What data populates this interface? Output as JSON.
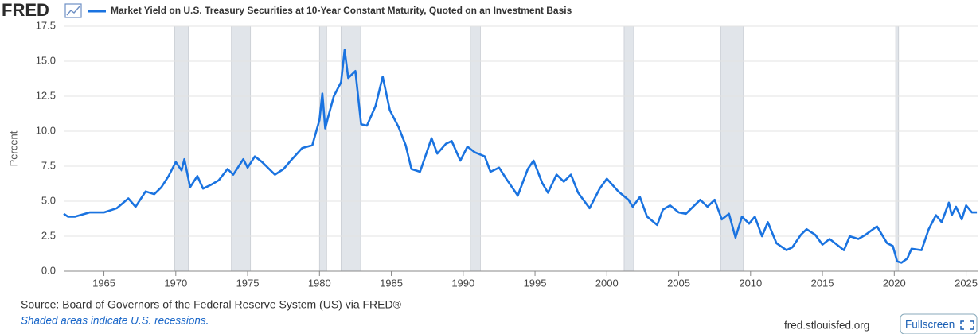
{
  "logo": "FRED",
  "source": "Source: Board of Governors of the Federal Reserve System (US) via FRED®",
  "note": "Shaded areas indicate U.S. recessions.",
  "site": "fred.stlouisfed.org",
  "button": "Fullscreen",
  "chart_data": {
    "type": "line",
    "y_label": "Percent",
    "grid": true,
    "xlim": [
      1962.2,
      2025.8
    ],
    "xticks": [
      1965,
      1970,
      1975,
      1980,
      1985,
      1990,
      1995,
      2000,
      2005,
      2010,
      2015,
      2020,
      2025
    ],
    "ylim": [
      0,
      17.5
    ],
    "yticks": [
      {
        "value": 0,
        "label": "0.0"
      },
      2.5,
      {
        "value": 5,
        "label": "5.0"
      },
      7.5,
      {
        "value": 10,
        "label": "10.0"
      },
      12.5,
      {
        "value": 15,
        "label": "15.0"
      },
      17.5
    ],
    "recessions": [
      [
        1969.92,
        1970.87
      ],
      [
        1973.87,
        1975.2
      ],
      [
        1980.0,
        1980.5
      ],
      [
        1981.5,
        1982.87
      ],
      [
        1990.5,
        1991.2
      ],
      [
        2001.2,
        2001.87
      ],
      [
        2007.92,
        2009.5
      ],
      [
        2020.1,
        2020.3
      ]
    ],
    "x": [
      1962.2,
      1962.5,
      1963.0,
      1964.0,
      1965.0,
      1965.9,
      1966.7,
      1967.2,
      1967.9,
      1968.5,
      1969.0,
      1969.5,
      1970.0,
      1970.4,
      1970.6,
      1971.0,
      1971.5,
      1971.9,
      1972.5,
      1973.0,
      1973.6,
      1974.0,
      1974.7,
      1975.0,
      1975.5,
      1976.0,
      1976.9,
      1977.5,
      1978.0,
      1978.8,
      1979.5,
      1980.0,
      1980.2,
      1980.4,
      1980.6,
      1981.0,
      1981.5,
      1981.75,
      1982.0,
      1982.5,
      1982.9,
      1983.3,
      1983.9,
      1984.4,
      1984.9,
      1985.5,
      1986.0,
      1986.4,
      1987.0,
      1987.8,
      1988.2,
      1988.8,
      1989.2,
      1989.8,
      1990.3,
      1990.8,
      1991.5,
      1991.9,
      1992.5,
      1993.0,
      1993.8,
      1994.5,
      1994.9,
      1995.5,
      1995.9,
      1996.5,
      1997.0,
      1997.5,
      1998.0,
      1998.8,
      1999.5,
      2000.0,
      2000.8,
      2001.5,
      2001.8,
      2002.3,
      2002.8,
      2003.5,
      2003.9,
      2004.4,
      2005.0,
      2005.5,
      2006.5,
      2007.0,
      2007.5,
      2008.0,
      2008.5,
      2008.95,
      2009.4,
      2009.9,
      2010.3,
      2010.8,
      2011.2,
      2011.8,
      2012.5,
      2012.9,
      2013.5,
      2013.9,
      2014.5,
      2015.0,
      2015.5,
      2016.5,
      2016.9,
      2017.5,
      2018.0,
      2018.8,
      2019.5,
      2019.9,
      2020.2,
      2020.5,
      2020.9,
      2021.2,
      2021.9,
      2022.4,
      2022.9,
      2023.3,
      2023.8,
      2024.0,
      2024.3,
      2024.7,
      2025.0,
      2025.4,
      2025.75
    ],
    "series": [
      {
        "name": "Market Yield on U.S. Treasury Securities at 10-Year Constant Maturity, Quoted on an Investment Basis",
        "color": "#1a73e0",
        "values": [
          4.1,
          3.9,
          3.9,
          4.2,
          4.2,
          4.5,
          5.2,
          4.6,
          5.7,
          5.5,
          6.0,
          6.8,
          7.8,
          7.2,
          8.0,
          6.0,
          6.8,
          5.9,
          6.2,
          6.5,
          7.3,
          6.9,
          8.0,
          7.4,
          8.2,
          7.8,
          6.9,
          7.3,
          7.9,
          8.8,
          9.0,
          10.8,
          12.7,
          10.2,
          11.0,
          12.5,
          13.5,
          15.8,
          13.8,
          14.3,
          10.5,
          10.4,
          11.8,
          13.9,
          11.5,
          10.3,
          9.0,
          7.3,
          7.1,
          9.5,
          8.4,
          9.1,
          9.3,
          7.9,
          8.9,
          8.5,
          8.2,
          7.1,
          7.4,
          6.6,
          5.4,
          7.3,
          7.9,
          6.3,
          5.6,
          6.9,
          6.4,
          6.9,
          5.6,
          4.5,
          5.9,
          6.6,
          5.7,
          5.1,
          4.6,
          5.3,
          3.9,
          3.3,
          4.4,
          4.7,
          4.2,
          4.1,
          5.1,
          4.6,
          5.1,
          3.7,
          4.1,
          2.4,
          3.9,
          3.4,
          3.9,
          2.5,
          3.5,
          2.0,
          1.5,
          1.7,
          2.6,
          3.0,
          2.6,
          1.9,
          2.3,
          1.5,
          2.5,
          2.3,
          2.6,
          3.2,
          2.0,
          1.8,
          0.7,
          0.6,
          0.9,
          1.6,
          1.5,
          3.0,
          4.0,
          3.5,
          4.9,
          4.0,
          4.6,
          3.7,
          4.7,
          4.2,
          4.2
        ]
      }
    ]
  }
}
